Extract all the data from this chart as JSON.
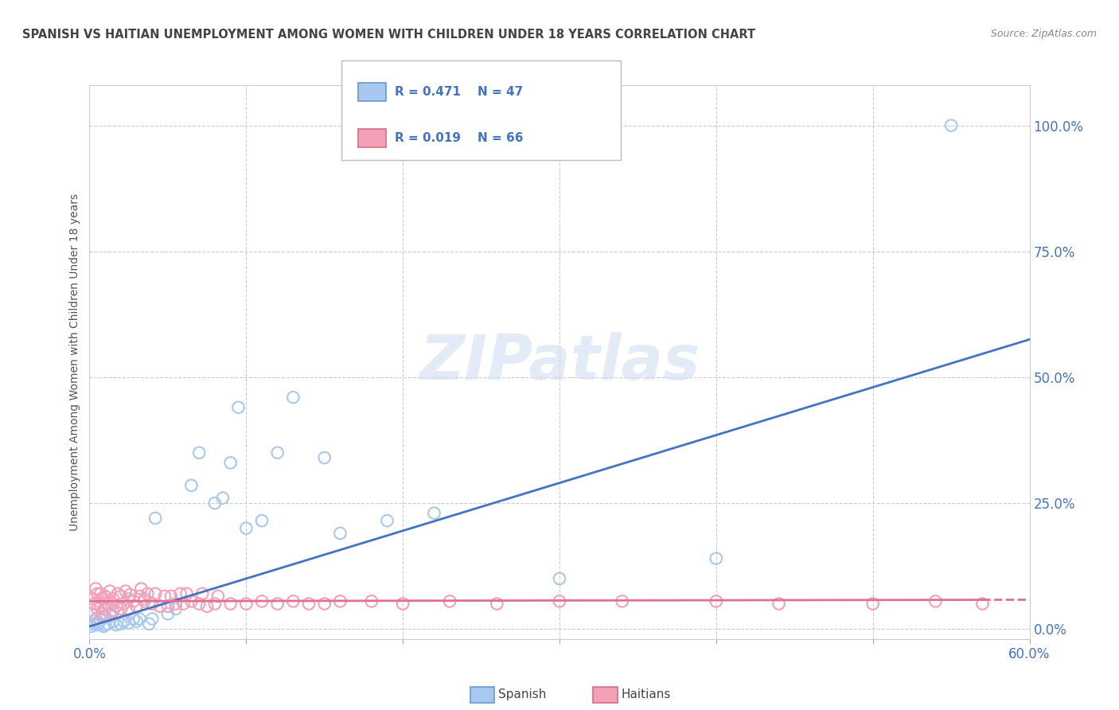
{
  "title": "SPANISH VS HAITIAN UNEMPLOYMENT AMONG WOMEN WITH CHILDREN UNDER 18 YEARS CORRELATION CHART",
  "source": "Source: ZipAtlas.com",
  "ylabel": "Unemployment Among Women with Children Under 18 years",
  "xlim": [
    0.0,
    0.6
  ],
  "ylim": [
    -0.02,
    1.08
  ],
  "yticks_right": [
    0.0,
    0.25,
    0.5,
    0.75,
    1.0
  ],
  "ytick_labels_right": [
    "0.0%",
    "25.0%",
    "50.0%",
    "75.0%",
    "100.0%"
  ],
  "spanish_color": "#A8C8F0",
  "haitian_color": "#F4A0B8",
  "spanish_line_color": "#4472C4",
  "haitian_line_color": "#E07090",
  "legend_text_color": "#4472C4",
  "watermark": "ZIPatlas",
  "background_color": "#FFFFFF",
  "grid_color": "#CCCCCC",
  "title_color": "#444444",
  "source_color": "#888888",
  "ylabel_color": "#555555",
  "xtick_color": "#4472C4",
  "ytick_color": "#4472C4",
  "spanish_line_intercept": 0.005,
  "spanish_line_slope": 0.95,
  "haitian_line_intercept": 0.055,
  "haitian_line_slope": 0.005,
  "spanish_x": [
    0.001,
    0.002,
    0.003,
    0.004,
    0.005,
    0.006,
    0.007,
    0.008,
    0.009,
    0.01,
    0.01,
    0.012,
    0.013,
    0.015,
    0.015,
    0.017,
    0.02,
    0.02,
    0.022,
    0.025,
    0.025,
    0.028,
    0.03,
    0.032,
    0.035,
    0.038,
    0.04,
    0.042,
    0.05,
    0.055,
    0.065,
    0.07,
    0.08,
    0.085,
    0.09,
    0.095,
    0.1,
    0.11,
    0.12,
    0.13,
    0.15,
    0.16,
    0.19,
    0.22,
    0.3,
    0.4,
    0.55
  ],
  "spanish_y": [
    0.005,
    0.01,
    0.015,
    0.02,
    0.008,
    0.012,
    0.018,
    0.025,
    0.005,
    0.008,
    0.025,
    0.01,
    0.03,
    0.015,
    0.05,
    0.008,
    0.01,
    0.04,
    0.015,
    0.012,
    0.06,
    0.02,
    0.015,
    0.02,
    0.06,
    0.01,
    0.02,
    0.22,
    0.03,
    0.04,
    0.285,
    0.35,
    0.25,
    0.26,
    0.33,
    0.44,
    0.2,
    0.215,
    0.35,
    0.46,
    0.34,
    0.19,
    0.215,
    0.23,
    0.1,
    0.14,
    1.0
  ],
  "haitian_x": [
    0.001,
    0.002,
    0.003,
    0.004,
    0.005,
    0.005,
    0.006,
    0.007,
    0.007,
    0.008,
    0.009,
    0.01,
    0.01,
    0.012,
    0.013,
    0.015,
    0.015,
    0.017,
    0.018,
    0.02,
    0.02,
    0.022,
    0.023,
    0.025,
    0.026,
    0.028,
    0.03,
    0.032,
    0.033,
    0.035,
    0.037,
    0.04,
    0.042,
    0.045,
    0.048,
    0.05,
    0.052,
    0.055,
    0.058,
    0.06,
    0.062,
    0.065,
    0.07,
    0.072,
    0.075,
    0.08,
    0.082,
    0.09,
    0.1,
    0.11,
    0.12,
    0.13,
    0.14,
    0.15,
    0.16,
    0.18,
    0.2,
    0.23,
    0.26,
    0.3,
    0.34,
    0.4,
    0.44,
    0.5,
    0.54,
    0.57
  ],
  "haitian_y": [
    0.03,
    0.06,
    0.05,
    0.08,
    0.04,
    0.07,
    0.055,
    0.045,
    0.07,
    0.03,
    0.06,
    0.04,
    0.065,
    0.05,
    0.075,
    0.035,
    0.06,
    0.045,
    0.07,
    0.04,
    0.065,
    0.05,
    0.075,
    0.038,
    0.068,
    0.055,
    0.045,
    0.065,
    0.08,
    0.055,
    0.07,
    0.05,
    0.07,
    0.045,
    0.065,
    0.045,
    0.065,
    0.05,
    0.07,
    0.05,
    0.07,
    0.055,
    0.05,
    0.07,
    0.045,
    0.05,
    0.065,
    0.05,
    0.05,
    0.055,
    0.05,
    0.055,
    0.05,
    0.05,
    0.055,
    0.055,
    0.05,
    0.055,
    0.05,
    0.055,
    0.055,
    0.055,
    0.05,
    0.05,
    0.055,
    0.05
  ]
}
